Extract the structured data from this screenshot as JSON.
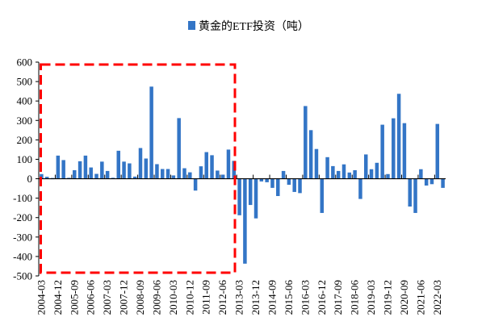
{
  "chart_data": {
    "type": "bar",
    "title": "",
    "legend": {
      "label": "黄金的ETF投资（吨）",
      "placement": "top-center"
    },
    "series_color": "#3375c6",
    "highlight_color": "#ff0000",
    "highlight_range": [
      "2004-03",
      "2012-12"
    ],
    "xlabel": "",
    "ylabel": "",
    "ylim": [
      -500,
      600
    ],
    "yticks": [
      -500,
      -400,
      -300,
      -200,
      -100,
      0,
      100,
      200,
      300,
      400,
      500,
      600
    ],
    "xtick_every": 3,
    "categories": [
      "2004-03",
      "2004-06",
      "2004-09",
      "2004-12",
      "2005-03",
      "2005-06",
      "2005-09",
      "2005-12",
      "2006-03",
      "2006-06",
      "2006-09",
      "2006-12",
      "2007-03",
      "2007-06",
      "2007-09",
      "2007-12",
      "2008-03",
      "2008-06",
      "2008-09",
      "2008-12",
      "2009-03",
      "2009-06",
      "2009-09",
      "2009-12",
      "2010-03",
      "2010-06",
      "2010-09",
      "2010-12",
      "2011-03",
      "2011-06",
      "2011-09",
      "2011-12",
      "2012-03",
      "2012-06",
      "2012-09",
      "2012-12",
      "2013-03",
      "2013-06",
      "2013-09",
      "2013-12",
      "2014-03",
      "2014-06",
      "2014-09",
      "2014-12",
      "2015-03",
      "2015-06",
      "2015-09",
      "2015-12",
      "2016-03",
      "2016-06",
      "2016-09",
      "2016-12",
      "2017-03",
      "2017-06",
      "2017-09",
      "2017-12",
      "2018-03",
      "2018-06",
      "2018-09",
      "2018-12",
      "2019-03",
      "2019-06",
      "2019-09",
      "2019-12",
      "2020-03",
      "2020-06",
      "2020-09",
      "2020-12",
      "2021-03",
      "2021-06",
      "2021-09",
      "2021-12",
      "2022-03",
      "2022-06"
    ],
    "values": [
      24,
      10,
      4,
      119,
      96,
      5,
      44,
      90,
      119,
      58,
      25,
      88,
      40,
      5,
      144,
      88,
      79,
      11,
      158,
      104,
      474,
      75,
      50,
      50,
      17,
      312,
      54,
      33,
      -61,
      64,
      137,
      121,
      42,
      21,
      150,
      92,
      -188,
      -437,
      -135,
      -204,
      -14,
      -18,
      -47,
      -89,
      40,
      -31,
      -68,
      -74,
      374,
      250,
      153,
      -176,
      111,
      65,
      40,
      74,
      32,
      44,
      -104,
      125,
      49,
      82,
      278,
      24,
      311,
      437,
      286,
      -143,
      -176,
      49,
      -35,
      -28,
      282,
      -47
    ]
  }
}
